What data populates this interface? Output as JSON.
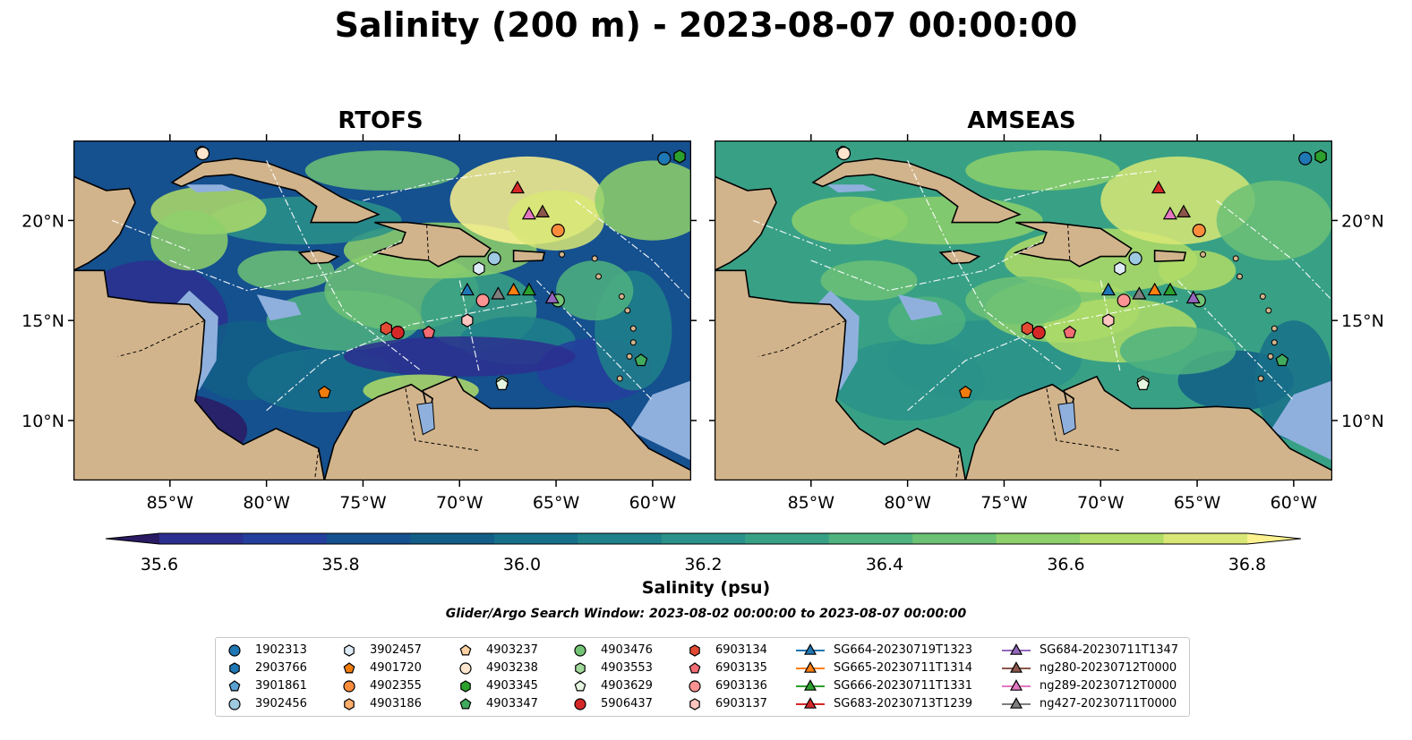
{
  "title": "Salinity (200 m) - 2023-08-07 00:00:00",
  "panels": [
    {
      "title": "RTOFS",
      "style": "rtofs"
    },
    {
      "title": "AMSEAS",
      "style": "amseas"
    }
  ],
  "colorbar": {
    "label": "Salinity (psu)",
    "ticks": [
      "35.6",
      "35.8",
      "36.0",
      "36.2",
      "36.4",
      "36.6",
      "36.8"
    ],
    "tick_values": [
      35.6,
      35.8,
      36.0,
      36.2,
      36.4,
      36.6,
      36.8
    ],
    "range": [
      35.55,
      36.9
    ],
    "levels": [
      35.5,
      35.6,
      35.7,
      35.8,
      35.9,
      36.0,
      36.1,
      36.2,
      36.3,
      36.4,
      36.5,
      36.6,
      36.7,
      36.8,
      36.9
    ],
    "colors": [
      "#2a1a64",
      "#2b2f8f",
      "#233e9c",
      "#15508f",
      "#125e87",
      "#17708a",
      "#1f818a",
      "#2a928a",
      "#38a185",
      "#4fb27f",
      "#6cc175",
      "#8ed06b",
      "#b0dc67",
      "#d8e776",
      "#fdf28f"
    ]
  },
  "subtitle": "Glider/Argo Search Window: 2023-08-02 00:00:00 to 2023-08-07 00:00:00",
  "chart_data": {
    "type": "map",
    "variable": "Salinity",
    "depth": "200 m",
    "units": "psu",
    "x_range": [
      -90,
      -58
    ],
    "y_range": [
      7,
      24
    ],
    "x_ticks": [
      "85°W",
      "80°W",
      "75°W",
      "70°W",
      "65°W",
      "60°W"
    ],
    "x_tick_values": [
      -85,
      -80,
      -75,
      -70,
      -65,
      -60
    ],
    "y_ticks": [
      "10°N",
      "15°N",
      "20°N"
    ],
    "y_tick_values": [
      10,
      15,
      20
    ],
    "platforms": [
      {
        "name": "1902313",
        "marker": "circle",
        "color": "#1f77b4",
        "lon": -59.4,
        "lat": 23.1
      },
      {
        "name": "2903766",
        "marker": "hexagon",
        "color": "#1f77b4",
        "lon": -58.6,
        "lat": 23.2
      },
      {
        "name": "3901861",
        "marker": "pentagon",
        "color": "#5aa0d0",
        "lon": -64.9,
        "lat": 16.0
      },
      {
        "name": "3902456",
        "marker": "circle",
        "color": "#9ecae1",
        "lon": -68.2,
        "lat": 18.1
      },
      {
        "name": "3902457",
        "marker": "hexagon",
        "color": "#deebf7",
        "lon": -69.0,
        "lat": 17.6
      },
      {
        "name": "4901720",
        "marker": "pentagon",
        "color": "#f07c0e",
        "lon": -77.0,
        "lat": 11.4
      },
      {
        "name": "4902355",
        "marker": "circle",
        "color": "#fd8d3c",
        "lon": -64.9,
        "lat": 19.5
      },
      {
        "name": "4903186",
        "marker": "hexagon",
        "color": "#fdae6b",
        "lon": -83.3,
        "lat": 23.4
      },
      {
        "name": "4903237",
        "marker": "pentagon",
        "color": "#fdd0a2",
        "lon": -83.4,
        "lat": 23.4
      },
      {
        "name": "4903238",
        "marker": "circle",
        "color": "#fee6ce",
        "lon": -83.3,
        "lat": 23.35
      },
      {
        "name": "4903345",
        "marker": "hexagon",
        "color": "#2ca02c",
        "lon": -58.6,
        "lat": 23.2
      },
      {
        "name": "4903347",
        "marker": "pentagon",
        "color": "#41ab5d",
        "lon": -60.6,
        "lat": 13.0
      },
      {
        "name": "4903476",
        "marker": "circle",
        "color": "#74c476",
        "lon": -64.9,
        "lat": 16.0
      },
      {
        "name": "4903553",
        "marker": "hexagon",
        "color": "#a1d99b",
        "lon": -67.8,
        "lat": 11.9
      },
      {
        "name": "4903629",
        "marker": "pentagon",
        "color": "#e5f5e0",
        "lon": -67.8,
        "lat": 11.8
      },
      {
        "name": "5906437",
        "marker": "circle",
        "color": "#d62728",
        "lon": -73.2,
        "lat": 14.4
      },
      {
        "name": "6903134",
        "marker": "hexagon",
        "color": "#e34a33",
        "lon": -73.8,
        "lat": 14.6
      },
      {
        "name": "6903135",
        "marker": "pentagon",
        "color": "#f46d75",
        "lon": -71.6,
        "lat": 14.4
      },
      {
        "name": "6903136",
        "marker": "circle",
        "color": "#fc9292",
        "lon": -68.8,
        "lat": 16.0
      },
      {
        "name": "6903137",
        "marker": "hexagon",
        "color": "#fcc5c0",
        "lon": -69.6,
        "lat": 15.0
      },
      {
        "name": "SG664-20230719T1323",
        "marker": "triangle",
        "color": "#1f77b4",
        "lon": -69.6,
        "lat": 16.5
      },
      {
        "name": "SG665-20230711T1314",
        "marker": "triangle",
        "color": "#ff7f0e",
        "lon": -67.2,
        "lat": 16.5
      },
      {
        "name": "SG666-20230711T1331",
        "marker": "triangle",
        "color": "#2ca02c",
        "lon": -66.4,
        "lat": 16.5
      },
      {
        "name": "SG683-20230713T1239",
        "marker": "triangle",
        "color": "#d62728",
        "lon": -67.0,
        "lat": 21.6
      },
      {
        "name": "SG684-20230711T1347",
        "marker": "triangle",
        "color": "#9467bd",
        "lon": -65.2,
        "lat": 16.1
      },
      {
        "name": "ng280-20230712T0000",
        "marker": "triangle",
        "color": "#8c564b",
        "lon": -65.7,
        "lat": 20.4
      },
      {
        "name": "ng289-20230712T0000",
        "marker": "triangle",
        "color": "#e377c2",
        "lon": -66.4,
        "lat": 20.3
      },
      {
        "name": "ng427-20230711T0000",
        "marker": "triangle",
        "color": "#7f7f7f",
        "lon": -68.0,
        "lat": 16.3
      }
    ]
  },
  "land_color": "#d2b48c",
  "shelf_color": "#8fb0dd"
}
